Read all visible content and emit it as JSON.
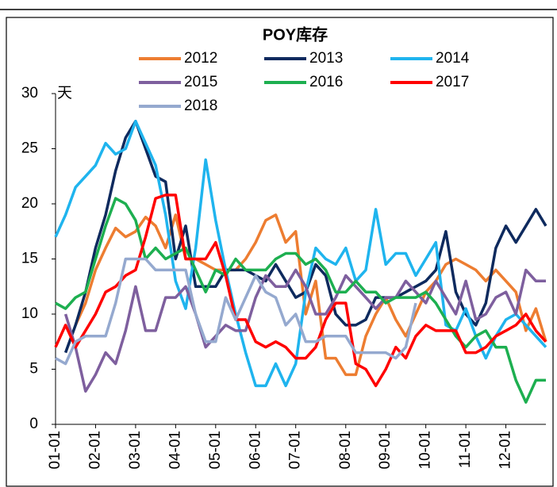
{
  "chart_data": {
    "type": "line",
    "title": "POY库存",
    "y_label": "天",
    "categories": [
      "01-01",
      null,
      null,
      null,
      "02-01",
      null,
      null,
      null,
      "03-01",
      null,
      null,
      null,
      "04-01",
      null,
      null,
      null,
      "05-01",
      null,
      null,
      null,
      "06-01",
      null,
      null,
      null,
      "07-01",
      null,
      null,
      null,
      null,
      "08-01",
      null,
      null,
      null,
      "09-01",
      null,
      null,
      null,
      "10-01",
      null,
      null,
      null,
      "11-01",
      null,
      null,
      null,
      "12-01",
      null,
      null,
      null,
      null
    ],
    "ylim": [
      0,
      30
    ],
    "yticks": [
      0,
      5,
      10,
      15,
      20,
      25,
      30
    ],
    "grid": false,
    "series": [
      {
        "name": "2012",
        "color": "#ed7d31",
        "values": [
          null,
          null,
          9,
          11,
          14,
          16,
          17.8,
          17,
          17.5,
          18.8,
          18,
          16,
          19,
          15,
          15,
          14.5,
          14,
          14,
          14,
          15,
          16.5,
          18.5,
          19,
          16.5,
          17.5,
          10,
          13,
          6,
          6,
          4.5,
          4.5,
          8,
          10,
          11.5,
          9.5,
          8,
          10,
          12,
          13,
          14.5,
          15,
          14.5,
          14,
          13,
          14,
          13,
          12,
          8.5,
          10.5,
          7.5
        ]
      },
      {
        "name": "2013",
        "color": "#0e2a5e",
        "values": [
          null,
          6.5,
          9,
          12,
          16,
          19,
          23,
          26,
          27.5,
          25,
          22.5,
          22,
          15,
          18,
          12.5,
          12.5,
          12.5,
          14,
          14,
          14,
          13.5,
          13,
          14.5,
          13,
          11.5,
          12,
          14.5,
          13.5,
          10,
          9,
          9,
          9.5,
          11.5,
          11.5,
          11.5,
          12,
          12.5,
          13,
          14,
          17.5,
          12,
          10,
          9,
          11,
          16,
          18,
          16.5,
          18,
          19.5,
          18
        ]
      },
      {
        "name": "2014",
        "color": "#1fb4ee",
        "values": [
          17,
          19,
          21.5,
          22.5,
          23.5,
          25.5,
          24.5,
          25,
          27.5,
          25.5,
          23.5,
          19,
          13,
          10.5,
          16,
          24,
          18.5,
          14,
          10,
          6.5,
          3.5,
          3.5,
          5.5,
          3.5,
          5.5,
          12,
          16,
          15,
          14.5,
          16,
          13,
          14,
          19.5,
          14.5,
          15.5,
          15.5,
          13.5,
          15,
          16.5,
          9,
          8.5,
          10.5,
          8,
          6,
          8,
          9.5,
          10,
          9,
          8,
          7
        ]
      },
      {
        "name": "2015",
        "color": "#7e5f9e",
        "values": [
          null,
          10,
          7,
          3,
          4.5,
          6.5,
          5.5,
          8.5,
          12.5,
          8.5,
          8.5,
          11.5,
          11.5,
          12.5,
          10,
          7,
          8,
          9,
          8.5,
          8.5,
          11.5,
          13.5,
          12.5,
          12.5,
          14,
          12.5,
          10,
          10,
          11.5,
          13.5,
          12.5,
          11.5,
          10.5,
          11.5,
          11.5,
          13,
          12,
          11,
          13,
          11.5,
          10,
          13,
          9.5,
          10,
          11.5,
          12,
          10,
          14,
          13,
          13
        ]
      },
      {
        "name": "2016",
        "color": "#1daf50",
        "values": [
          11,
          10.5,
          11.5,
          12,
          15,
          18,
          20.5,
          20,
          18.5,
          15,
          16,
          15,
          15.5,
          16,
          14,
          12,
          14,
          13.5,
          15,
          14,
          14,
          14,
          15,
          15.5,
          15.5,
          14.5,
          15,
          14,
          12,
          12,
          13,
          12,
          12,
          11,
          11.5,
          11.5,
          11.5,
          12,
          11,
          9.5,
          8,
          7,
          8,
          8.5,
          7,
          7,
          4,
          2,
          4,
          4
        ]
      },
      {
        "name": "2017",
        "color": "#ff0000",
        "values": [
          7,
          9,
          7,
          8.5,
          10,
          12,
          12.5,
          13.5,
          14,
          17,
          20.5,
          20.8,
          20.8,
          15,
          15,
          15,
          16.5,
          13.5,
          9.5,
          9.5,
          7.5,
          7,
          7.5,
          7,
          6,
          6,
          7,
          9.5,
          11,
          11,
          5.5,
          5,
          3.5,
          5,
          7,
          6,
          8,
          9,
          8.5,
          8.5,
          8.5,
          6.5,
          6.5,
          7,
          8,
          8.5,
          9,
          10,
          8.5,
          7.5
        ]
      },
      {
        "name": "2018",
        "color": "#95a9cf",
        "values": [
          6,
          5.5,
          7.5,
          8,
          8,
          8,
          11,
          15,
          15,
          15,
          14,
          14,
          14,
          14,
          10,
          7.5,
          7.5,
          11.5,
          9.5,
          11.5,
          13.5,
          12,
          11.5,
          9,
          10,
          7.5,
          7.5,
          8,
          8,
          8,
          6.5,
          6.5,
          6.5,
          6.5,
          6,
          7,
          11,
          null,
          null,
          null,
          null,
          null,
          null,
          null,
          null,
          null,
          null,
          null,
          null,
          null
        ]
      }
    ]
  }
}
